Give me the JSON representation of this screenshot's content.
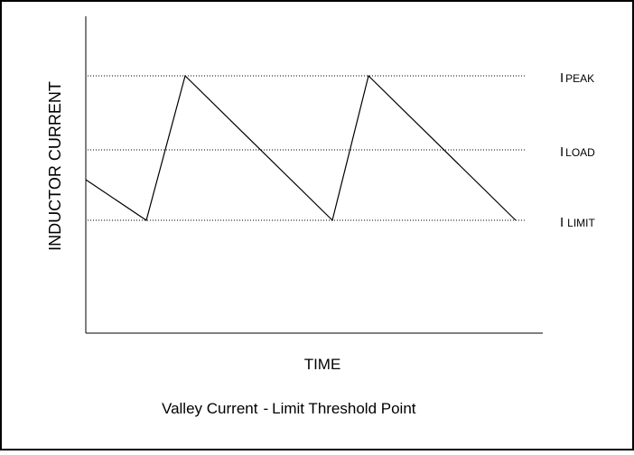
{
  "figure": {
    "y_axis_label": "INDUCTOR CURRENT",
    "x_axis_label": "TIME",
    "caption": "Valley Current - Limit Threshold Point",
    "caption_left": "Valley Current",
    "caption_sep": "-",
    "caption_right": "Limit Threshold Point",
    "levels": {
      "peak": {
        "main": "I",
        "sub": "PEAK"
      },
      "load": {
        "main": "I",
        "sub": "LOAD"
      },
      "limit": {
        "main": "I",
        "sub": "LIMIT"
      }
    },
    "colors": {
      "line": "#000000",
      "border": "#000000",
      "background": "#ffffff"
    }
  }
}
